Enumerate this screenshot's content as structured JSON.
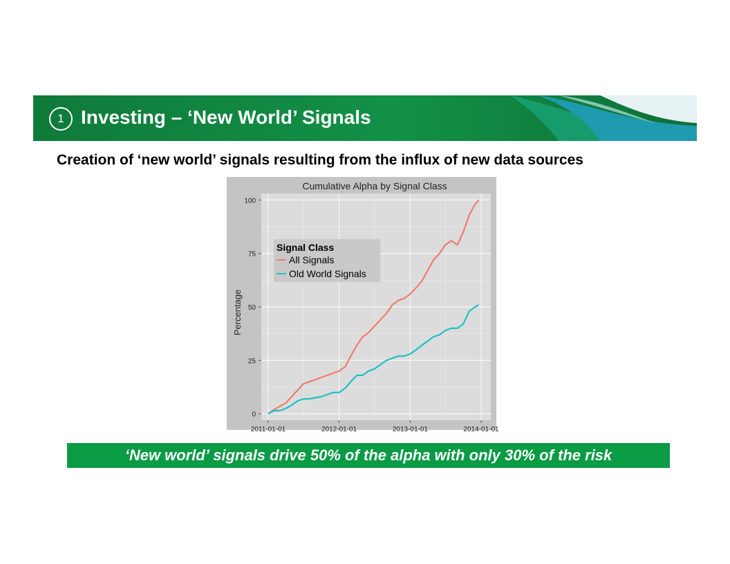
{
  "header": {
    "badge_number": "1",
    "title": "Investing – ‘New World’ Signals",
    "colors": {
      "banner": "#0f7a3a",
      "accent_teal": "#1f9bb0"
    }
  },
  "subtitle": "Creation of ‘new world’ signals resulting from the influx of new data sources",
  "chart_data": {
    "type": "line",
    "title": "Cumulative Alpha by Signal Class",
    "xlabel": "",
    "ylabel": "Percentage",
    "x_ticks": [
      "2011-01-01",
      "2012-01-01",
      "2013-01-01",
      "2014-01-01"
    ],
    "y_ticks": [
      "0",
      "25",
      "50",
      "75",
      "100"
    ],
    "xlim": [
      "2011-01-01",
      "2014-01-01"
    ],
    "ylim": [
      -3,
      103
    ],
    "grid": true,
    "background": "#dcdcdc",
    "legend": {
      "title": "Signal Class",
      "position": "top-left"
    },
    "series": [
      {
        "name": "All Signals",
        "color": "#f07b6f",
        "points": [
          [
            "2011-01-01",
            0
          ],
          [
            "2011-02-01",
            2
          ],
          [
            "2011-03-01",
            3.5
          ],
          [
            "2011-04-01",
            5
          ],
          [
            "2011-05-01",
            8
          ],
          [
            "2011-06-01",
            11
          ],
          [
            "2011-07-01",
            14
          ],
          [
            "2011-08-01",
            15
          ],
          [
            "2011-09-01",
            16
          ],
          [
            "2011-10-01",
            17
          ],
          [
            "2011-11-01",
            18
          ],
          [
            "2011-12-01",
            19
          ],
          [
            "2012-01-01",
            20
          ],
          [
            "2012-02-01",
            22
          ],
          [
            "2012-03-01",
            27
          ],
          [
            "2012-04-01",
            32
          ],
          [
            "2012-05-01",
            36
          ],
          [
            "2012-06-01",
            38
          ],
          [
            "2012-07-01",
            41
          ],
          [
            "2012-08-01",
            44
          ],
          [
            "2012-09-01",
            47
          ],
          [
            "2012-10-01",
            51
          ],
          [
            "2012-11-01",
            53
          ],
          [
            "2012-12-01",
            54
          ],
          [
            "2013-01-01",
            56
          ],
          [
            "2013-02-01",
            59
          ],
          [
            "2013-03-01",
            62
          ],
          [
            "2013-04-01",
            67
          ],
          [
            "2013-05-01",
            72
          ],
          [
            "2013-06-01",
            75
          ],
          [
            "2013-07-01",
            79
          ],
          [
            "2013-08-01",
            81
          ],
          [
            "2013-09-01",
            79
          ],
          [
            "2013-10-01",
            85
          ],
          [
            "2013-11-01",
            93
          ],
          [
            "2013-12-01",
            98
          ],
          [
            "2013-12-20",
            100
          ]
        ]
      },
      {
        "name": "Old World Signals",
        "color": "#1fbfc4",
        "points": [
          [
            "2011-01-01",
            0
          ],
          [
            "2011-02-01",
            1.5
          ],
          [
            "2011-03-01",
            1.5
          ],
          [
            "2011-04-01",
            2.5
          ],
          [
            "2011-05-01",
            4
          ],
          [
            "2011-06-01",
            6
          ],
          [
            "2011-07-01",
            7
          ],
          [
            "2011-08-01",
            7
          ],
          [
            "2011-09-01",
            7.5
          ],
          [
            "2011-10-01",
            8
          ],
          [
            "2011-11-01",
            9
          ],
          [
            "2011-12-01",
            10
          ],
          [
            "2012-01-01",
            10
          ],
          [
            "2012-02-01",
            12
          ],
          [
            "2012-03-01",
            15
          ],
          [
            "2012-04-01",
            18
          ],
          [
            "2012-05-01",
            18
          ],
          [
            "2012-06-01",
            20
          ],
          [
            "2012-07-01",
            21
          ],
          [
            "2012-08-01",
            23
          ],
          [
            "2012-09-01",
            25
          ],
          [
            "2012-10-01",
            26
          ],
          [
            "2012-11-01",
            27
          ],
          [
            "2012-12-01",
            27
          ],
          [
            "2013-01-01",
            28
          ],
          [
            "2013-02-01",
            30
          ],
          [
            "2013-03-01",
            32
          ],
          [
            "2013-04-01",
            34
          ],
          [
            "2013-05-01",
            36
          ],
          [
            "2013-06-01",
            37
          ],
          [
            "2013-07-01",
            39
          ],
          [
            "2013-08-01",
            40
          ],
          [
            "2013-09-01",
            40
          ],
          [
            "2013-10-01",
            42
          ],
          [
            "2013-11-01",
            48
          ],
          [
            "2013-12-01",
            50
          ],
          [
            "2013-12-20",
            51
          ]
        ]
      }
    ]
  },
  "takeaway": "‘New world’ signals drive 50% of the alpha with only 30% of the risk"
}
